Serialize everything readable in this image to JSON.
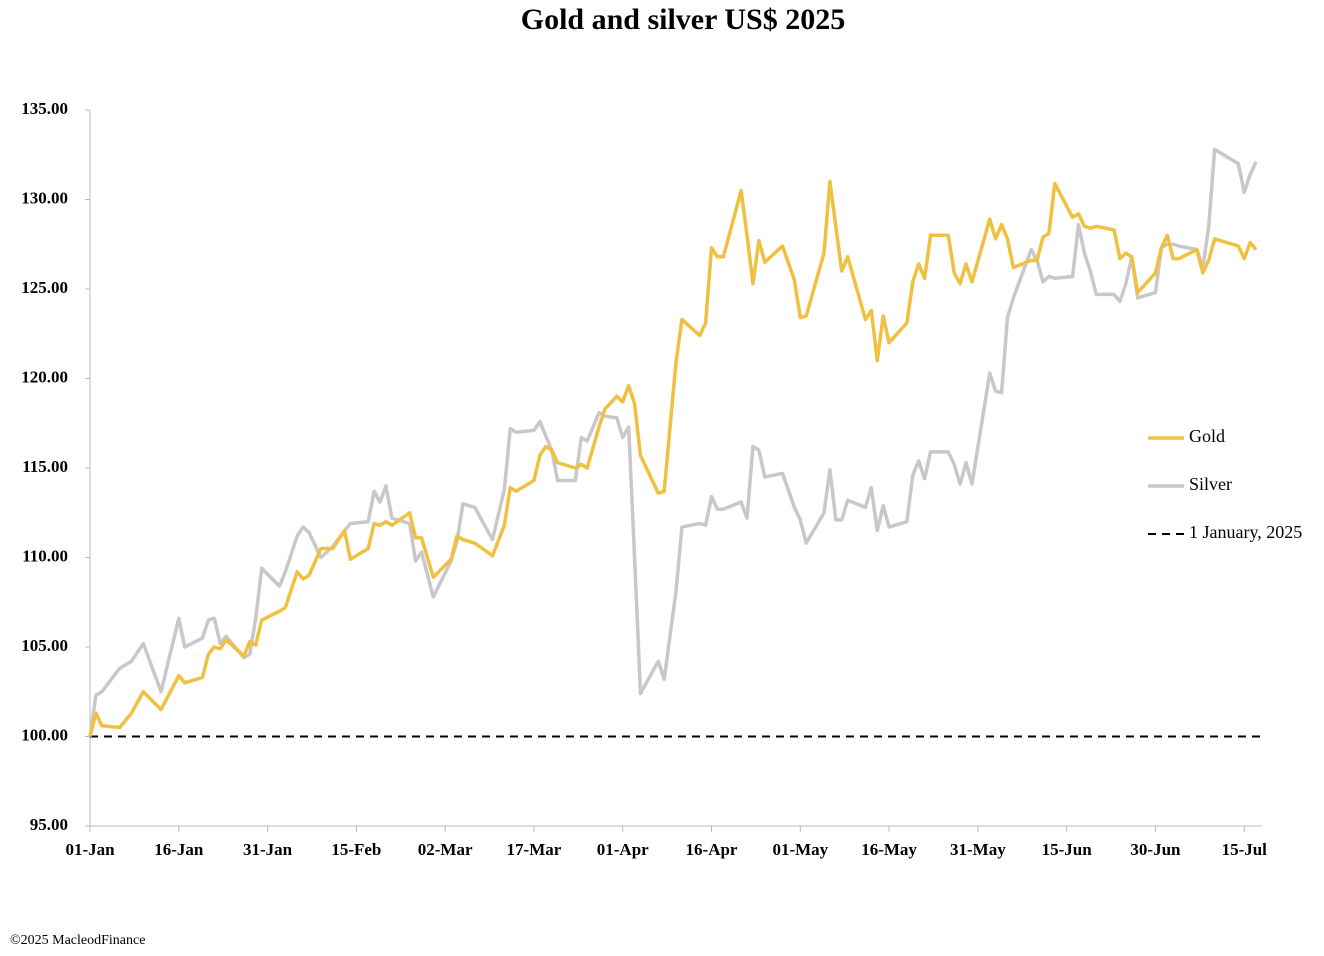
{
  "chart_data": {
    "type": "line",
    "title": "Gold and silver  US$ 2025",
    "footer": "©2025 MacleodFinance",
    "x": [
      "2025-01-01",
      "2025-01-02",
      "2025-01-03",
      "2025-01-06",
      "2025-01-08",
      "2025-01-10",
      "2025-01-13",
      "2025-01-16",
      "2025-01-17",
      "2025-01-20",
      "2025-01-21",
      "2025-01-22",
      "2025-01-23",
      "2025-01-24",
      "2025-01-27",
      "2025-01-28",
      "2025-01-29",
      "2025-01-30",
      "2025-02-02",
      "2025-02-03",
      "2025-02-05",
      "2025-02-06",
      "2025-02-07",
      "2025-02-09",
      "2025-02-11",
      "2025-02-13",
      "2025-02-14",
      "2025-02-17",
      "2025-02-18",
      "2025-02-19",
      "2025-02-20",
      "2025-02-21",
      "2025-02-24",
      "2025-02-25",
      "2025-02-26",
      "2025-02-28",
      "2025-03-03",
      "2025-03-04",
      "2025-03-05",
      "2025-03-07",
      "2025-03-10",
      "2025-03-12",
      "2025-03-13",
      "2025-03-14",
      "2025-03-17",
      "2025-03-18",
      "2025-03-19",
      "2025-03-20",
      "2025-03-21",
      "2025-03-24",
      "2025-03-25",
      "2025-03-26",
      "2025-03-28",
      "2025-03-29",
      "2025-03-31",
      "2025-04-01",
      "2025-04-02",
      "2025-04-03",
      "2025-04-04",
      "2025-04-07",
      "2025-04-08",
      "2025-04-10",
      "2025-04-11",
      "2025-04-14",
      "2025-04-15",
      "2025-04-16",
      "2025-04-17",
      "2025-04-18",
      "2025-04-21",
      "2025-04-22",
      "2025-04-23",
      "2025-04-24",
      "2025-04-25",
      "2025-04-28",
      "2025-04-30",
      "2025-05-01",
      "2025-05-02",
      "2025-05-05",
      "2025-05-06",
      "2025-05-07",
      "2025-05-08",
      "2025-05-09",
      "2025-05-12",
      "2025-05-13",
      "2025-05-14",
      "2025-05-15",
      "2025-05-16",
      "2025-05-19",
      "2025-05-20",
      "2025-05-21",
      "2025-05-22",
      "2025-05-23",
      "2025-05-26",
      "2025-05-27",
      "2025-05-28",
      "2025-05-29",
      "2025-05-30",
      "2025-06-02",
      "2025-06-03",
      "2025-06-04",
      "2025-06-05",
      "2025-06-06",
      "2025-06-09",
      "2025-06-10",
      "2025-06-11",
      "2025-06-12",
      "2025-06-13",
      "2025-06-16",
      "2025-06-17",
      "2025-06-18",
      "2025-06-19",
      "2025-06-20",
      "2025-06-23",
      "2025-06-24",
      "2025-06-25",
      "2025-06-26",
      "2025-06-27",
      "2025-06-30",
      "2025-07-01",
      "2025-07-02",
      "2025-07-03",
      "2025-07-04",
      "2025-07-07",
      "2025-07-08",
      "2025-07-09",
      "2025-07-10",
      "2025-07-14",
      "2025-07-15",
      "2025-07-16",
      "2025-07-17"
    ],
    "series": [
      {
        "name": "Gold",
        "color": "#f0c040",
        "values": [
          100.0,
          101.3,
          100.6,
          100.5,
          101.3,
          102.5,
          101.5,
          103.4,
          103.0,
          103.3,
          104.6,
          105.0,
          104.9,
          105.4,
          104.5,
          105.3,
          105.1,
          106.5,
          107.0,
          107.2,
          109.2,
          108.8,
          109.0,
          110.5,
          110.5,
          111.5,
          109.9,
          110.5,
          111.9,
          111.8,
          112.0,
          111.8,
          112.5,
          111.1,
          111.1,
          108.9,
          109.9,
          111.2,
          111.0,
          110.8,
          110.1,
          111.8,
          113.9,
          113.7,
          114.3,
          115.7,
          116.2,
          116.0,
          115.3,
          115.0,
          115.2,
          115.0,
          117.3,
          118.3,
          119.0,
          118.7,
          119.6,
          118.6,
          115.7,
          113.6,
          113.7,
          120.9,
          123.3,
          122.4,
          123.1,
          127.3,
          126.8,
          126.8,
          130.5,
          128.0,
          125.3,
          127.7,
          126.5,
          127.4,
          125.5,
          123.4,
          123.5,
          127.0,
          131.0,
          128.5,
          126.0,
          126.8,
          123.3,
          123.8,
          121.0,
          123.5,
          122.0,
          123.1,
          125.4,
          126.4,
          125.6,
          128.0,
          128.0,
          125.9,
          125.3,
          126.4,
          125.4,
          128.9,
          127.8,
          128.6,
          127.8,
          126.2,
          126.6,
          126.6,
          127.9,
          128.1,
          130.9,
          129.0,
          129.2,
          128.5,
          128.4,
          128.5,
          128.3,
          126.7,
          127.0,
          126.8,
          124.8,
          125.9,
          127.3,
          128.0,
          126.7,
          126.7,
          127.2,
          125.9,
          126.6,
          127.8,
          127.4,
          126.7,
          127.6,
          127.2
        ]
      },
      {
        "name": "Silver",
        "color": "#c8c8c8",
        "values": [
          100.0,
          102.3,
          102.5,
          103.8,
          104.2,
          105.2,
          102.5,
          106.6,
          105.0,
          105.5,
          106.5,
          106.6,
          105.2,
          105.6,
          104.4,
          104.6,
          106.6,
          109.4,
          108.4,
          109.2,
          111.2,
          111.7,
          111.4,
          110.0,
          110.6,
          111.5,
          111.9,
          112.0,
          113.7,
          113.1,
          114.0,
          112.2,
          111.9,
          109.8,
          110.3,
          107.8,
          109.8,
          110.9,
          113.0,
          112.8,
          111.0,
          113.8,
          117.2,
          117.0,
          117.1,
          117.6,
          116.8,
          116.0,
          114.3,
          114.3,
          116.7,
          116.5,
          118.1,
          117.9,
          117.8,
          116.7,
          117.3,
          110.0,
          102.4,
          104.2,
          103.2,
          108.1,
          111.7,
          111.9,
          111.8,
          113.4,
          112.7,
          112.7,
          113.1,
          112.2,
          116.2,
          116.0,
          114.5,
          114.7,
          112.8,
          112.1,
          110.8,
          112.5,
          114.9,
          112.1,
          112.1,
          113.2,
          112.8,
          113.9,
          111.5,
          112.9,
          111.7,
          112.0,
          114.6,
          115.4,
          114.4,
          115.9,
          115.9,
          115.2,
          114.1,
          115.3,
          114.1,
          120.3,
          119.3,
          119.2,
          123.4,
          124.5,
          127.2,
          126.6,
          125.4,
          125.7,
          125.6,
          125.7,
          128.6,
          127.0,
          126.0,
          124.7,
          124.7,
          124.3,
          125.3,
          126.8,
          124.5,
          124.8,
          127.3,
          127.5,
          127.5,
          127.4,
          127.2,
          126.2,
          128.5,
          132.8,
          132.0,
          130.4,
          131.4,
          132.1
        ]
      }
    ],
    "reference_line": {
      "name": "1 January, 2025",
      "value": 100,
      "color": "#000000",
      "dashed": true
    },
    "xlim": [
      "2025-01-01",
      "2025-07-18"
    ],
    "xticks": [
      {
        "value": "2025-01-01",
        "label": "01-Jan"
      },
      {
        "value": "2025-01-16",
        "label": "16-Jan"
      },
      {
        "value": "2025-01-31",
        "label": "31-Jan"
      },
      {
        "value": "2025-02-15",
        "label": "15-Feb"
      },
      {
        "value": "2025-03-02",
        "label": "02-Mar"
      },
      {
        "value": "2025-03-17",
        "label": "17-Mar"
      },
      {
        "value": "2025-04-01",
        "label": "01-Apr"
      },
      {
        "value": "2025-04-16",
        "label": "16-Apr"
      },
      {
        "value": "2025-05-01",
        "label": "01-May"
      },
      {
        "value": "2025-05-16",
        "label": "16-May"
      },
      {
        "value": "2025-05-31",
        "label": "31-May"
      },
      {
        "value": "2025-06-15",
        "label": "15-Jun"
      },
      {
        "value": "2025-06-30",
        "label": "30-Jun"
      },
      {
        "value": "2025-07-15",
        "label": "15-Jul"
      }
    ],
    "ylim": [
      95,
      135
    ],
    "yticks": [
      {
        "value": 95,
        "label": "95.00"
      },
      {
        "value": 100,
        "label": "100.00"
      },
      {
        "value": 105,
        "label": "105.00"
      },
      {
        "value": 110,
        "label": "110.00"
      },
      {
        "value": 115,
        "label": "115.00"
      },
      {
        "value": 120,
        "label": "120.00"
      },
      {
        "value": 125,
        "label": "125.00"
      },
      {
        "value": 130,
        "label": "130.00"
      },
      {
        "value": 135,
        "label": "135.00"
      }
    ],
    "grid": false,
    "legend": "right"
  }
}
